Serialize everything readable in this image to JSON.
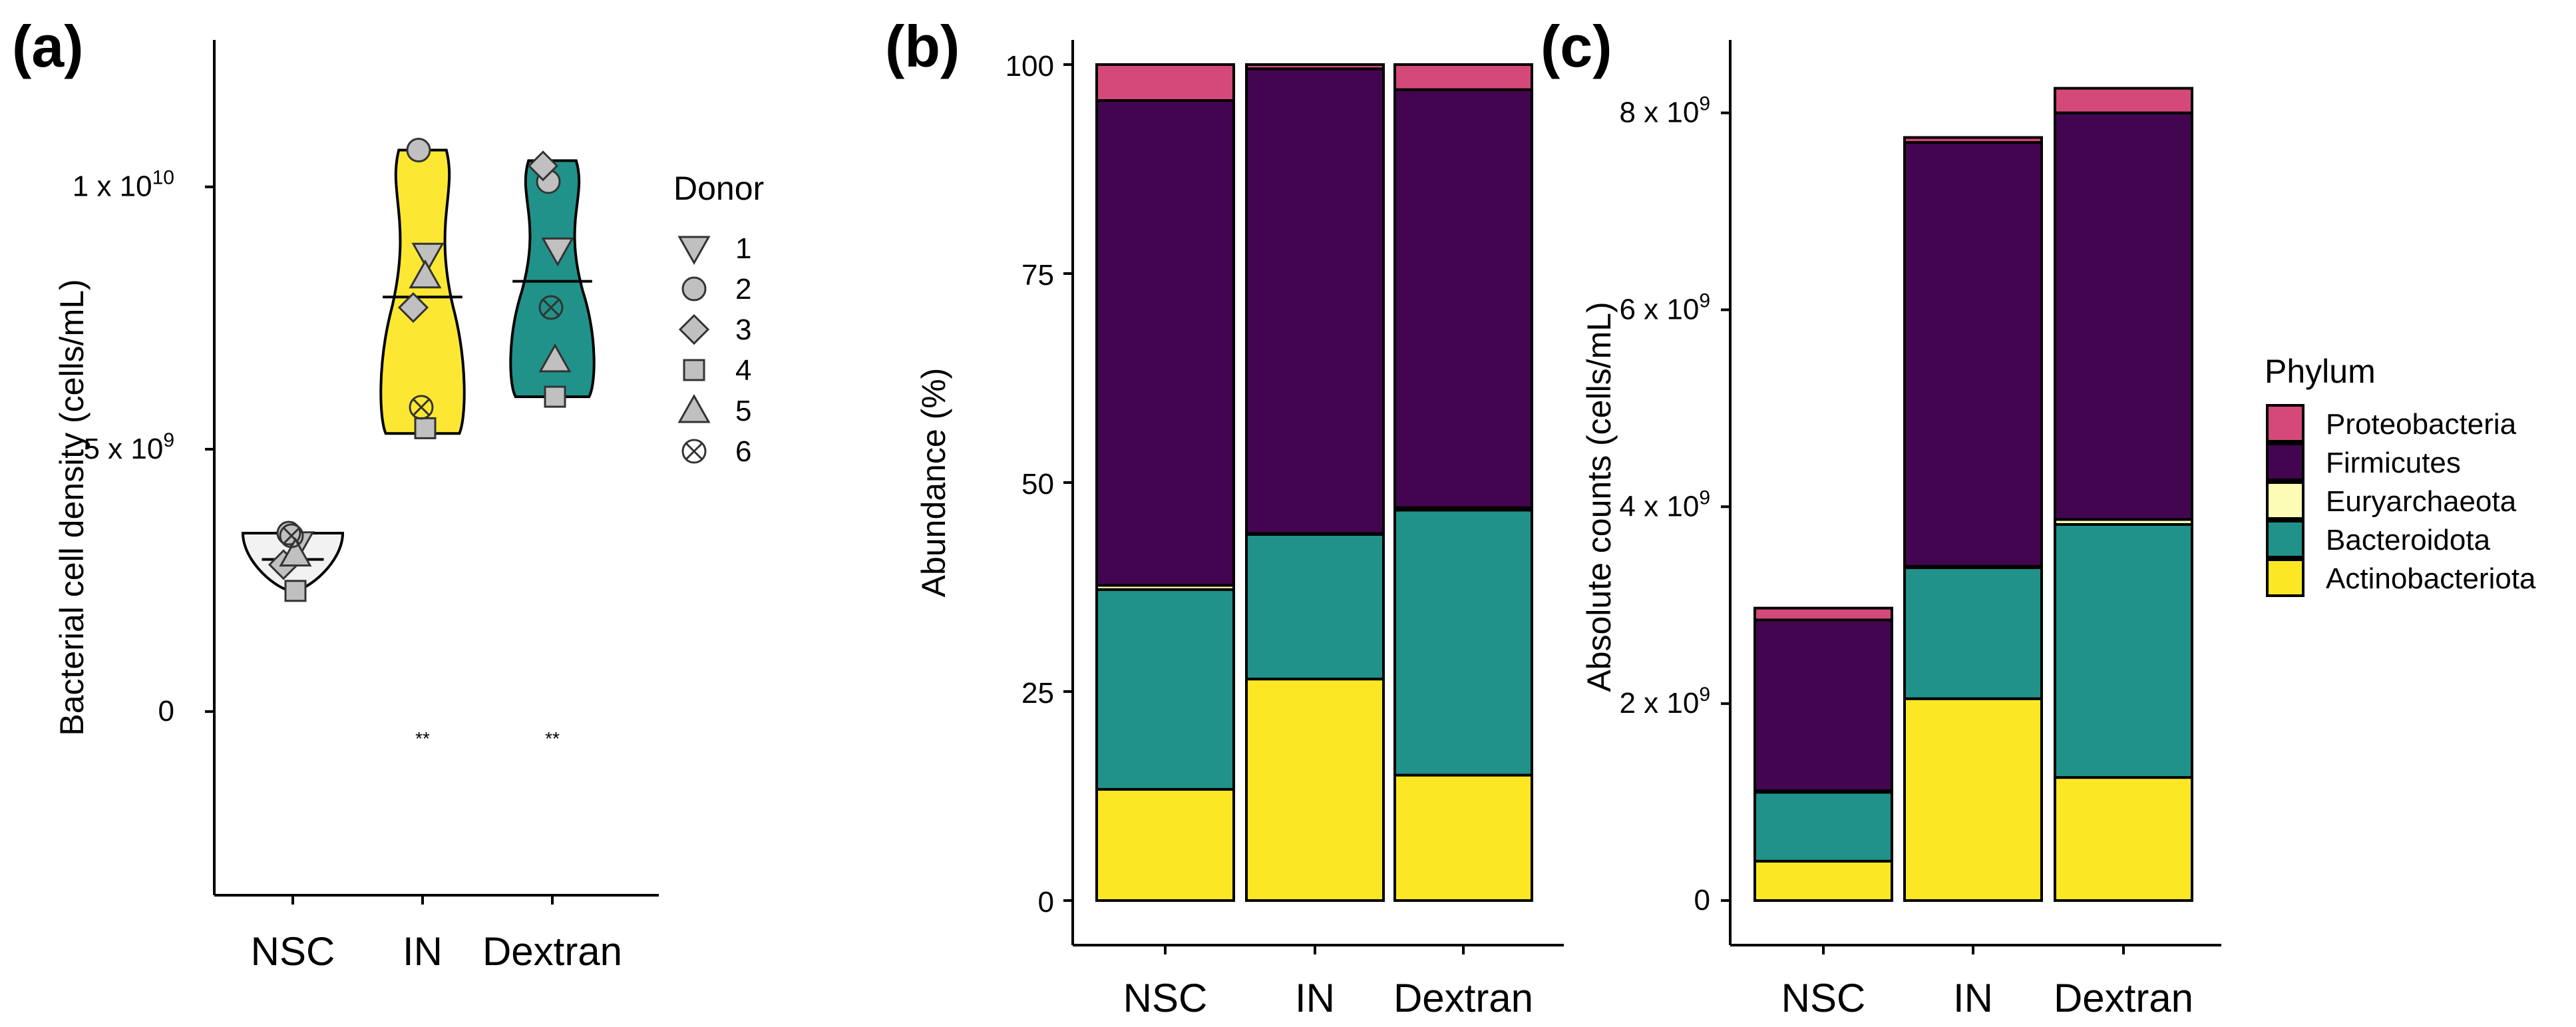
{
  "colors": {
    "Proteobacteria": "#d4497a",
    "Firmicutes": "#43054f",
    "Euryarchaeota": "#fdfcb6",
    "Bacteroidota": "#20928a",
    "Actinobacteriota": "#fce724",
    "violin_NSC": "#f2f2f2",
    "violin_IN": "#fce833",
    "violin_Dextran": "#20928a",
    "marker_fill": "#c0c0c0"
  },
  "chart_data": [
    {
      "panel": "(a)",
      "type": "violin",
      "ylabel": "Bacterial cell density (cells/mL)",
      "categories": [
        "NSC",
        "IN",
        "Dextran"
      ],
      "y_ticks": [
        {
          "value": 0,
          "label": "0",
          "sup": ""
        },
        {
          "value": 5000000000,
          "label": "5 x 10",
          "sup": "9"
        },
        {
          "value": 10000000000,
          "label": "1 x 10",
          "sup": "10"
        }
      ],
      "ylim": [
        -3500000000,
        12800000000
      ],
      "legend_title": "Donor",
      "legend": [
        {
          "label": "1",
          "marker": "triangle-down"
        },
        {
          "label": "2",
          "marker": "circle"
        },
        {
          "label": "3",
          "marker": "diamond"
        },
        {
          "label": "4",
          "marker": "square"
        },
        {
          "label": "5",
          "marker": "triangle-up"
        },
        {
          "label": "6",
          "marker": "circle-cross"
        }
      ],
      "groups": [
        {
          "name": "NSC",
          "min": 2300000000,
          "max": 3400000000,
          "median": 2900000000,
          "annotation": "",
          "points": [
            {
              "donor": "1",
              "value": 3200000000
            },
            {
              "donor": "2",
              "value": 3400000000
            },
            {
              "donor": "3",
              "value": 2800000000
            },
            {
              "donor": "4",
              "value": 2300000000
            },
            {
              "donor": "5",
              "value": 3000000000
            },
            {
              "donor": "6",
              "value": 3350000000
            }
          ]
        },
        {
          "name": "IN",
          "min": 5300000000,
          "max": 10700000000,
          "median": 7900000000,
          "annotation": "**",
          "points": [
            {
              "donor": "1",
              "value": 8700000000
            },
            {
              "donor": "2",
              "value": 10700000000
            },
            {
              "donor": "3",
              "value": 7700000000
            },
            {
              "donor": "4",
              "value": 5400000000
            },
            {
              "donor": "5",
              "value": 8300000000
            },
            {
              "donor": "6",
              "value": 5800000000
            }
          ]
        },
        {
          "name": "Dextran",
          "min": 6000000000,
          "max": 10500000000,
          "median": 8200000000,
          "annotation": "**",
          "points": [
            {
              "donor": "1",
              "value": 8800000000
            },
            {
              "donor": "2",
              "value": 10100000000
            },
            {
              "donor": "3",
              "value": 10400000000
            },
            {
              "donor": "4",
              "value": 6000000000
            },
            {
              "donor": "5",
              "value": 6700000000
            },
            {
              "donor": "6",
              "value": 7700000000
            }
          ]
        }
      ]
    },
    {
      "panel": "(b)",
      "type": "stacked-bar",
      "ylabel": "Abundance (%)",
      "categories": [
        "NSC",
        "IN",
        "Dextran"
      ],
      "ylim": [
        0,
        100
      ],
      "y_ticks": [
        {
          "value": 0,
          "label": "0"
        },
        {
          "value": 25,
          "label": "25"
        },
        {
          "value": 50,
          "label": "50"
        },
        {
          "value": 75,
          "label": "75"
        },
        {
          "value": 100,
          "label": "100"
        }
      ],
      "series": [
        {
          "name": "Actinobacteriota",
          "values": [
            13.3,
            26.5,
            15.0
          ]
        },
        {
          "name": "Bacteroidota",
          "values": [
            23.9,
            17.3,
            31.7
          ]
        },
        {
          "name": "Euryarchaeota",
          "values": [
            0.5,
            0.1,
            0.3
          ]
        },
        {
          "name": "Firmicutes",
          "values": [
            58.0,
            55.6,
            50.0
          ]
        },
        {
          "name": "Proteobacteria",
          "values": [
            4.3,
            0.5,
            3.0
          ]
        }
      ]
    },
    {
      "panel": "(c)",
      "type": "stacked-bar",
      "ylabel": "Absolute counts (cells/mL)",
      "categories": [
        "NSC",
        "IN",
        "Dextran"
      ],
      "ylim": [
        0,
        8200000000
      ],
      "y_ticks": [
        {
          "value": 0,
          "label": "0",
          "sup": ""
        },
        {
          "value": 2000000000,
          "label": "2 x 10",
          "sup": "9"
        },
        {
          "value": 4000000000,
          "label": "4 x 10",
          "sup": "9"
        },
        {
          "value": 6000000000,
          "label": "6 x 10",
          "sup": "9"
        },
        {
          "value": 8000000000,
          "label": "8 x 10",
          "sup": "9"
        }
      ],
      "legend_title": "Phylum",
      "legend": [
        "Proteobacteria",
        "Firmicutes",
        "Euryarchaeota",
        "Bacteroidota",
        "Actinobacteriota"
      ],
      "series": [
        {
          "name": "Actinobacteriota",
          "values": [
            400000000,
            2050000000,
            1250000000
          ]
        },
        {
          "name": "Bacteroidota",
          "values": [
            700000000,
            1330000000,
            2570000000
          ]
        },
        {
          "name": "Euryarchaeota",
          "values": [
            15000000,
            15000000,
            50000000
          ]
        },
        {
          "name": "Firmicutes",
          "values": [
            1735000000,
            4305000000,
            4130000000
          ]
        },
        {
          "name": "Proteobacteria",
          "values": [
            120000000,
            50000000,
            250000000
          ]
        }
      ]
    }
  ]
}
